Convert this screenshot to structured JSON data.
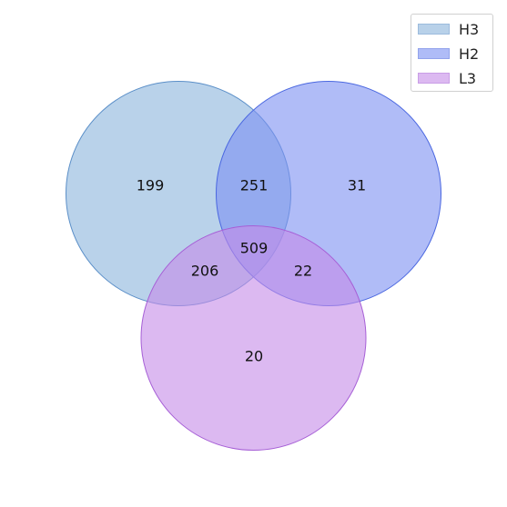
{
  "chart_data": {
    "type": "venn",
    "sets": [
      {
        "name": "H3",
        "fill": "#8ab4dc",
        "stroke": "#5b8fc8"
      },
      {
        "name": "H2",
        "fill": "#7b90f2",
        "stroke": "#4a67e0"
      },
      {
        "name": "L3",
        "fill": "#c58be8",
        "stroke": "#a65fd6"
      }
    ],
    "regions": [
      {
        "sets": [
          "H3"
        ],
        "value": 199
      },
      {
        "sets": [
          "H2"
        ],
        "value": 31
      },
      {
        "sets": [
          "L3"
        ],
        "value": 20
      },
      {
        "sets": [
          "H3",
          "H2"
        ],
        "value": 251
      },
      {
        "sets": [
          "H3",
          "L3"
        ],
        "value": 206
      },
      {
        "sets": [
          "H2",
          "L3"
        ],
        "value": 22
      },
      {
        "sets": [
          "H3",
          "H2",
          "L3"
        ],
        "value": 509
      }
    ],
    "legend_position": "top-right"
  }
}
